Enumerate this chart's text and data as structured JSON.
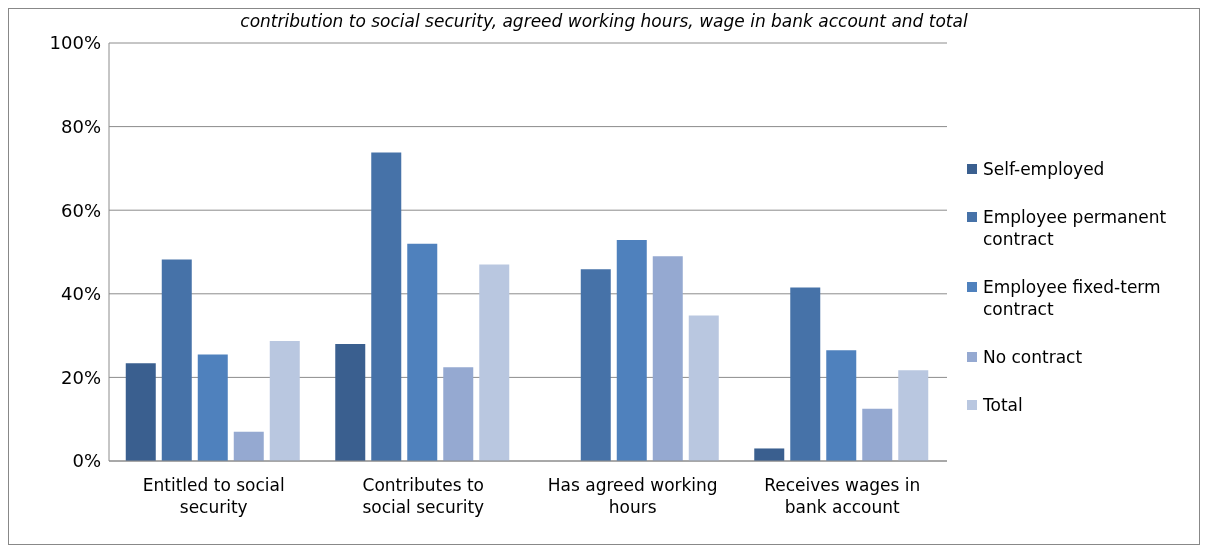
{
  "chart_data": {
    "type": "bar",
    "title": "contribution to social security, agreed working hours, wage in bank account and total",
    "categories": [
      "Entitled to social security",
      "Contributes to social security",
      "Has agreed working hours",
      "Receives wages in bank account"
    ],
    "series": [
      {
        "name": "Self-employed",
        "color": "#3a5f8f",
        "values": [
          23.4,
          28.0,
          null,
          3.0
        ]
      },
      {
        "name": "Employee permanent contract",
        "color": "#4672a8",
        "values": [
          48.2,
          73.8,
          45.9,
          41.5
        ]
      },
      {
        "name": "Employee fixed-term contract",
        "color": "#4f81bd",
        "values": [
          25.5,
          52.0,
          52.9,
          26.5
        ]
      },
      {
        "name": "No contract",
        "color": "#95a9d1",
        "values": [
          7.0,
          22.4,
          49.0,
          12.5
        ]
      },
      {
        "name": "Total",
        "color": "#b9c7e0",
        "values": [
          28.7,
          47.0,
          34.8,
          21.7
        ]
      }
    ],
    "ylim": [
      0,
      100
    ],
    "yticks": [
      {
        "value": 0,
        "label": "0%"
      },
      {
        "value": 20,
        "label": "20%"
      },
      {
        "value": 40,
        "label": "40%"
      },
      {
        "value": 60,
        "label": "60%"
      },
      {
        "value": 80,
        "label": "80%"
      },
      {
        "value": 100,
        "label": "100%"
      }
    ],
    "grid": "y",
    "legend": "right"
  }
}
